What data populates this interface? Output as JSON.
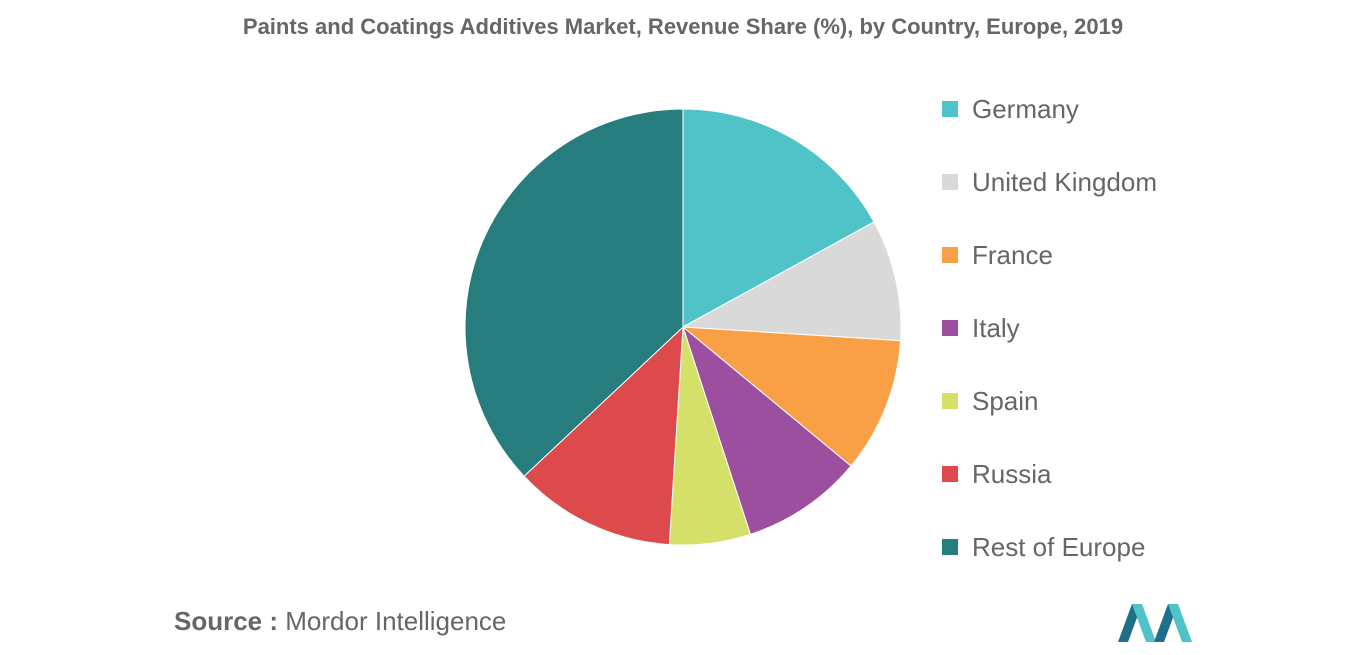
{
  "title": "Paints and Coatings Additives Market, Revenue Share (%), by Country, Europe, 2019",
  "source": {
    "prefix": "Source :",
    "text": "Mordor Intelligence"
  },
  "logo": {
    "name": "mordor-intelligence-logo",
    "colors": [
      "#1e6f8a",
      "#4fc3c8"
    ]
  },
  "chart_data": {
    "type": "pie",
    "title": "Paints and Coatings Additives Market, Revenue Share (%), by Country, Europe, 2019",
    "start": "12 o'clock",
    "direction": "clockwise",
    "legend_position": "right",
    "categories": [
      "Germany",
      "United Kingdom",
      "France",
      "Italy",
      "Spain",
      "Russia",
      "Rest of Europe"
    ],
    "values": [
      17,
      9,
      10,
      9,
      6,
      12,
      37
    ],
    "colors": [
      "#4fc3c8",
      "#d9d9d9",
      "#f9a046",
      "#9b4f9e",
      "#d5e06b",
      "#dc4a4b",
      "#277d7e"
    ]
  }
}
